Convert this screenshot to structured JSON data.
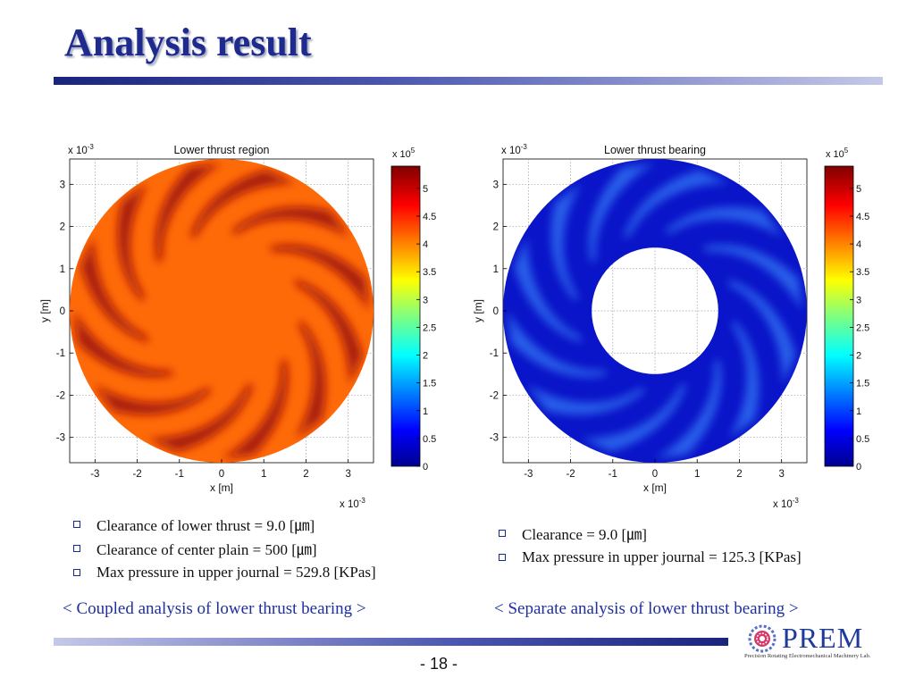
{
  "slide": {
    "title": "Analysis result",
    "page_number": "- 18 -",
    "logo_text": "PREM",
    "logo_subtitle": "Precision Rotating Electromechanical Machinery Lab.",
    "left": {
      "bullets": [
        "Clearance of lower thrust = 9.0 [㎛]",
        "Clearance of center plain = 500 [㎛]",
        "Max pressure in upper journal = 529.8 [KPas]"
      ],
      "caption": "< Coupled analysis of lower thrust bearing >"
    },
    "right": {
      "bullets": [
        "Clearance = 9.0 [㎛]",
        "Max pressure in upper journal = 125.3 [KPas]"
      ],
      "caption": "< Separate analysis of lower thrust bearing >"
    }
  },
  "chart_data": [
    {
      "type": "heatmap",
      "title": "Lower thrust region",
      "xlabel": "x [m]",
      "ylabel": "y [m]",
      "x_multiplier": "x 10-3",
      "y_multiplier": "x 10-3",
      "xlim": [
        -3.6,
        3.6
      ],
      "ylim": [
        -3.6,
        3.6
      ],
      "xticks": [
        -3,
        -2,
        -1,
        0,
        1,
        2,
        3
      ],
      "yticks": [
        3,
        2,
        1,
        0,
        -1,
        -2,
        -3
      ],
      "grid": true,
      "outer_radius": 3.6,
      "inner_radius": 0,
      "colorbar": {
        "multiplier": "x 10^5",
        "range": [
          0,
          5.4
        ],
        "ticks": [
          "5",
          "4.5",
          "4",
          "3.5",
          "3",
          "2.5",
          "2",
          "1.5",
          "1",
          "0.5",
          "0"
        ]
      },
      "colors": {
        "base": "#ff6a08",
        "groove": "#9a0a0a"
      }
    },
    {
      "type": "heatmap",
      "title": "Lower thrust bearing",
      "xlabel": "x [m]",
      "ylabel": "y [m]",
      "x_multiplier": "x 10-3",
      "y_multiplier": "x 10-3",
      "xlim": [
        -3.6,
        3.6
      ],
      "ylim": [
        -3.6,
        3.6
      ],
      "xticks": [
        -3,
        -2,
        -1,
        0,
        1,
        2,
        3
      ],
      "yticks": [
        3,
        2,
        1,
        0,
        -1,
        -2,
        -3
      ],
      "grid": true,
      "outer_radius": 3.6,
      "inner_radius": 1.5,
      "colorbar": {
        "multiplier": "x 10^5",
        "range": [
          0,
          5.4
        ],
        "ticks": [
          "5",
          "4.5",
          "4",
          "3.5",
          "3",
          "2.5",
          "2",
          "1.5",
          "1",
          "0.5",
          "0"
        ]
      },
      "colors": {
        "base": "#0a14c8",
        "groove": "#2f6cf0"
      }
    }
  ]
}
